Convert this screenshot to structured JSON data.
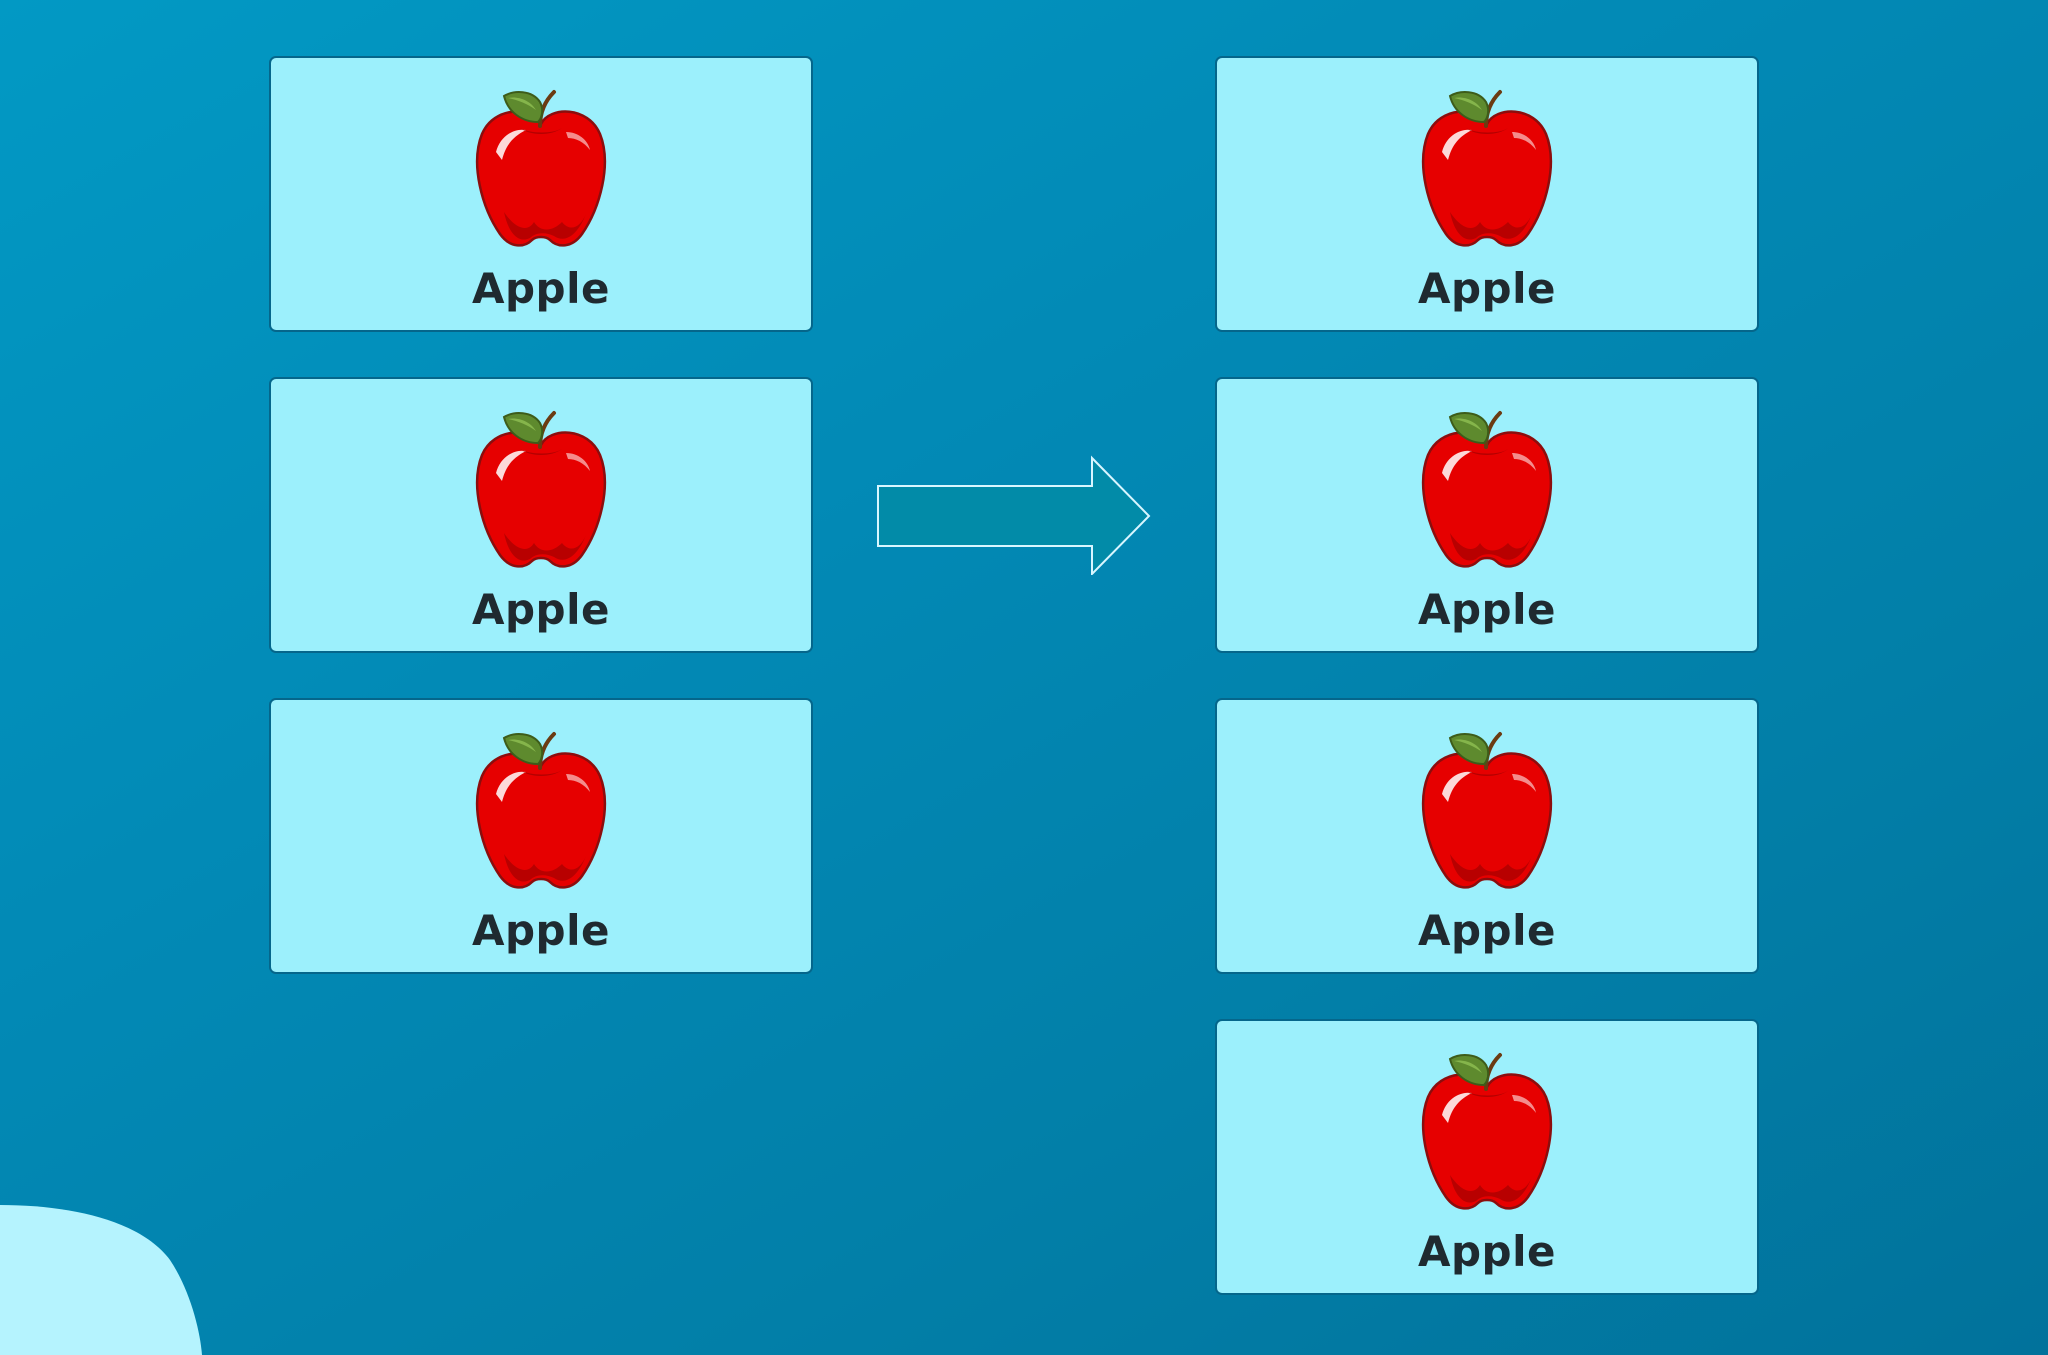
{
  "colors": {
    "background": "#0289b5",
    "card_fill": "#9cf0fc",
    "card_border": "#05668b",
    "arrow_fill": "#028ba8",
    "arrow_stroke": "#d8f6ff",
    "apple_red": "#e60000",
    "leaf_green": "#5e8a2e",
    "label_text": "#1f2a30"
  },
  "left_group": {
    "cards": [
      {
        "label": "Apple",
        "icon": "apple-icon"
      },
      {
        "label": "Apple",
        "icon": "apple-icon"
      },
      {
        "label": "Apple",
        "icon": "apple-icon"
      }
    ]
  },
  "connector": {
    "icon": "arrow-right-icon"
  },
  "right_group": {
    "cards": [
      {
        "label": "Apple",
        "icon": "apple-icon"
      },
      {
        "label": "Apple",
        "icon": "apple-icon"
      },
      {
        "label": "Apple",
        "icon": "apple-icon"
      },
      {
        "label": "Apple",
        "icon": "apple-icon"
      }
    ]
  }
}
